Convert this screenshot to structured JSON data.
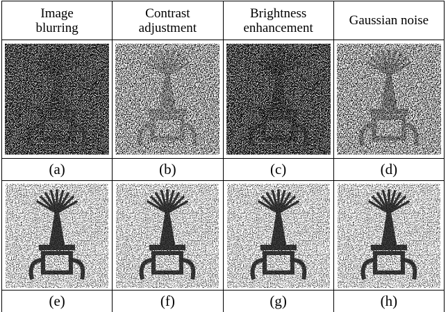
{
  "header": [
    "Image\nblurring",
    "Contrast\nadjustment",
    "Brightness\nenhancement",
    "Gaussian noise"
  ],
  "labels": [
    [
      "(a)",
      "(b)",
      "(c)",
      "(d)"
    ],
    [
      "(e)",
      "(f)",
      "(g)",
      "(h)"
    ]
  ]
}
